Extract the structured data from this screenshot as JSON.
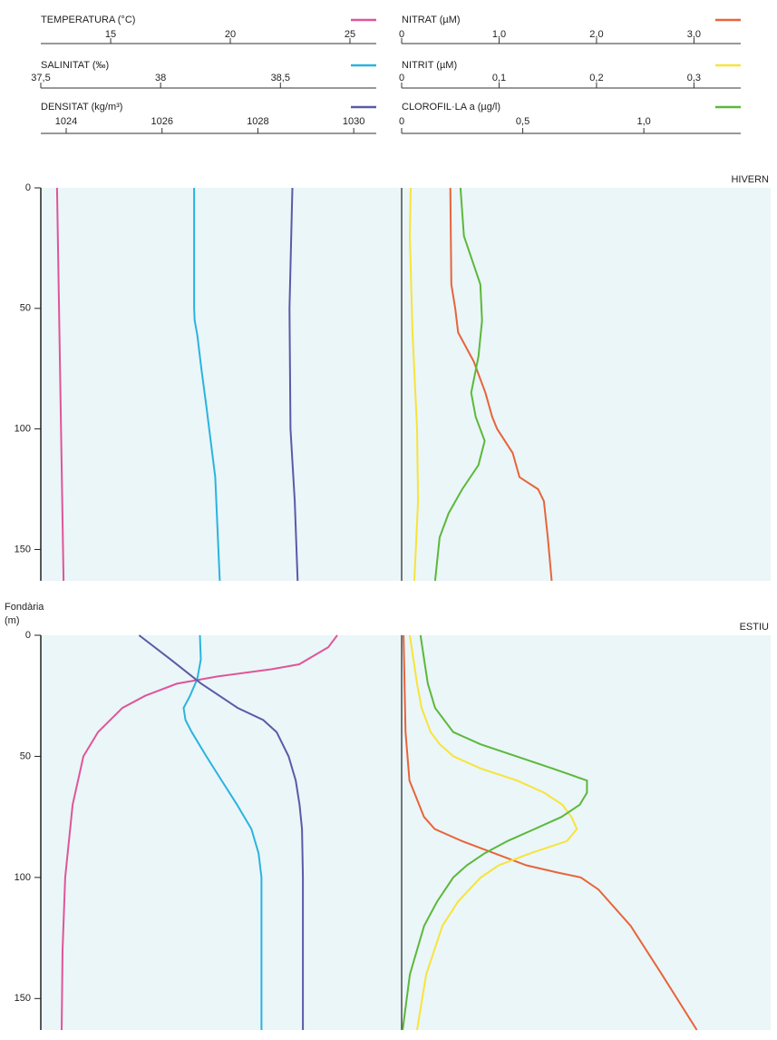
{
  "chart_data": {
    "type": "line",
    "y_label": "Fondària",
    "y_unit": "(m)",
    "ylim": [
      0,
      163
    ],
    "yticks": [
      0,
      50,
      100,
      150
    ],
    "background": "#eaf6f8",
    "variables": [
      [
        {
          "name": "TEMPERATURA (°C)",
          "color": "#e0559a",
          "xlim": [
            12.08,
            26.1
          ],
          "xticks": [
            15,
            20,
            25
          ]
        },
        {
          "name": "SALINITAT (‰)",
          "color": "#2bb3e0",
          "xlim": [
            37.5,
            38.9
          ],
          "xticks": [
            {
              "value": 37.5,
              "label": "37,5"
            },
            38,
            {
              "value": 38.5,
              "label": "38,5"
            }
          ]
        },
        {
          "name": "DENSITAT (kg/m³)",
          "color": "#5a5aa8",
          "xlim": [
            1023.47,
            1030.47
          ],
          "xticks": [
            1024,
            1026,
            1028,
            1030
          ]
        }
      ],
      [
        {
          "name": "NITRAT (µM)",
          "color": "#e8643a",
          "xlim": [
            0,
            3.48
          ],
          "xticks": [
            0,
            {
              "value": 1,
              "label": "1,0"
            },
            {
              "value": 2,
              "label": "2,0"
            },
            {
              "value": 3,
              "label": "3,0"
            }
          ]
        },
        {
          "name": "NITRIT (µM)",
          "color": "#f7e43a",
          "xlim": [
            0,
            0.348
          ],
          "xticks": [
            0,
            {
              "value": 0.1,
              "label": "0,1"
            },
            {
              "value": 0.2,
              "label": "0,2"
            },
            {
              "value": 0.3,
              "label": "0,3"
            }
          ]
        },
        {
          "name": "CLOROFIL·LA a (µg/l)",
          "color": "#5cb83a",
          "xlim": [
            0,
            1.4
          ],
          "xticks": [
            0,
            {
              "value": 0.5,
              "label": "0,5"
            },
            {
              "value": 1,
              "label": "1,0"
            }
          ]
        }
      ]
    ],
    "panels": [
      {
        "title": "HIVERN",
        "series": [
          [
            {
              "y": [
                0,
                163
              ],
              "values": [
                12.76,
                13.03
              ]
            },
            {
              "y": [
                0,
                50,
                55,
                61,
                75,
                90,
                120,
                163
              ],
              "values": [
                38.14,
                38.14,
                38.142,
                38.153,
                38.17,
                38.19,
                38.228,
                38.247
              ]
            },
            {
              "y": [
                0,
                50,
                100,
                130,
                163
              ],
              "values": [
                1028.72,
                1028.66,
                1028.68,
                1028.77,
                1028.83
              ]
            }
          ],
          [
            {
              "y": [
                0,
                40,
                50,
                60,
                72,
                85,
                95,
                100,
                110,
                120,
                125,
                130,
                145,
                163
              ],
              "values": [
                0.5,
                0.51,
                0.55,
                0.58,
                0.74,
                0.86,
                0.93,
                0.98,
                1.14,
                1.21,
                1.4,
                1.46,
                1.5,
                1.54
              ]
            },
            {
              "y": [
                0,
                20,
                60,
                100,
                130,
                163
              ],
              "values": [
                0.0093,
                0.0084,
                0.0112,
                0.0158,
                0.0168,
                0.013
              ]
            },
            {
              "y": [
                0,
                20,
                40,
                55,
                70,
                85,
                95,
                105,
                115,
                125,
                135,
                145,
                163
              ],
              "values": [
                0.243,
                0.257,
                0.325,
                0.332,
                0.317,
                0.287,
                0.306,
                0.343,
                0.317,
                0.25,
                0.194,
                0.157,
                0.138
              ]
            }
          ]
        ]
      },
      {
        "title": "ESTIU",
        "series": [
          [
            {
              "y": [
                0,
                5,
                12,
                14,
                17,
                20,
                25,
                30,
                40,
                50,
                70,
                100,
                130,
                163
              ],
              "values": [
                24.47,
                24.09,
                22.88,
                21.74,
                19.47,
                17.76,
                16.44,
                15.49,
                14.47,
                13.86,
                13.41,
                13.1,
                12.99,
                12.95
              ]
            },
            {
              "y": [
                0,
                10,
                18,
                25,
                30,
                35,
                40,
                50,
                60,
                70,
                80,
                90,
                100,
                163
              ],
              "values": [
                38.164,
                38.168,
                38.153,
                38.123,
                38.096,
                38.104,
                38.13,
                38.191,
                38.255,
                38.319,
                38.379,
                38.409,
                38.421,
                38.421
              ]
            },
            {
              "y": [
                0,
                10,
                20,
                30,
                35,
                40,
                50,
                60,
                70,
                80,
                100,
                163
              ],
              "values": [
                1025.52,
                1026.18,
                1026.82,
                1027.58,
                1028.11,
                1028.39,
                1028.64,
                1028.79,
                1028.87,
                1028.92,
                1028.94,
                1028.94
              ]
            }
          ],
          [
            {
              "y": [
                0,
                40,
                60,
                65,
                70,
                75,
                80,
                85,
                90,
                95,
                98,
                100,
                105,
                120,
                140,
                163
              ],
              "values": [
                0.02,
                0.04,
                0.08,
                0.13,
                0.18,
                0.23,
                0.34,
                0.62,
                0.95,
                1.28,
                1.6,
                1.84,
                2.02,
                2.35,
                2.67,
                3.03
              ]
            },
            {
              "y": [
                0,
                10,
                20,
                30,
                40,
                45,
                50,
                55,
                60,
                65,
                70,
                75,
                80,
                85,
                90,
                95,
                100,
                110,
                120,
                140,
                163
              ],
              "values": [
                0.0084,
                0.0121,
                0.0158,
                0.0205,
                0.0298,
                0.0391,
                0.0531,
                0.0811,
                0.1184,
                0.1463,
                0.165,
                0.1743,
                0.1799,
                0.1696,
                0.1323,
                0.0997,
                0.0811,
                0.0578,
                0.0419,
                0.0252,
                0.0158
              ]
            },
            {
              "y": [
                0,
                10,
                20,
                30,
                40,
                45,
                50,
                55,
                60,
                65,
                70,
                75,
                80,
                85,
                90,
                95,
                100,
                110,
                120,
                140,
                163
              ],
              "values": [
                0.078,
                0.093,
                0.108,
                0.138,
                0.213,
                0.325,
                0.474,
                0.623,
                0.765,
                0.765,
                0.735,
                0.66,
                0.549,
                0.437,
                0.343,
                0.269,
                0.213,
                0.146,
                0.093,
                0.034,
                0.004
              ]
            }
          ]
        ]
      }
    ]
  }
}
